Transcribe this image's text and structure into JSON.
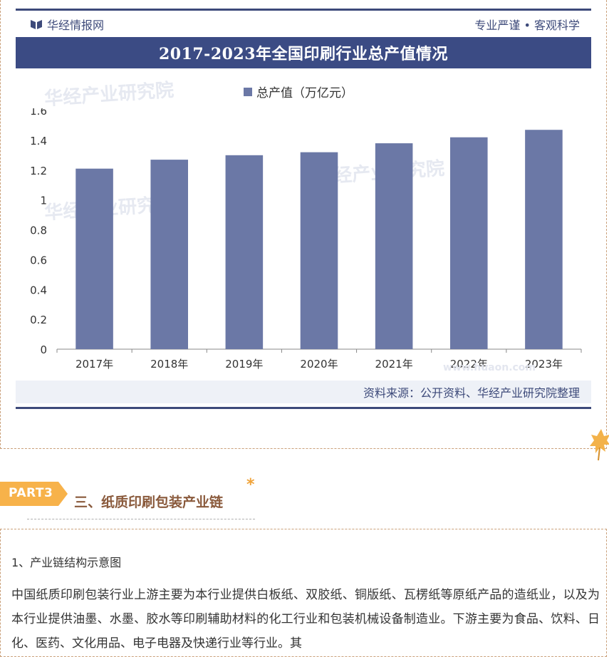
{
  "header": {
    "brand": "华经情报网",
    "tagline": "专业严谨 • 客观科学"
  },
  "chart_data": {
    "type": "bar",
    "title": "2017-2023年全国印刷行业总产值情况",
    "categories": [
      "2017年",
      "2018年",
      "2019年",
      "2020年",
      "2021年",
      "2022年",
      "2023年"
    ],
    "series": [
      {
        "name": "总产值（万亿元）",
        "values": [
          1.21,
          1.27,
          1.3,
          1.32,
          1.38,
          1.42,
          1.47
        ]
      }
    ],
    "yticks": [
      "0",
      "0.2",
      "0.4",
      "0.6",
      "0.8",
      "1",
      "1.2",
      "1.4",
      "1.6"
    ],
    "ylim": [
      0,
      1.6
    ],
    "grid": false,
    "legend": "top-center",
    "bar_color": "#6b78a6"
  },
  "source": "资料来源：公开资料、华经产业研究院整理",
  "watermarks": [
    "华经产业研究院",
    "华经产业研究院",
    "华经产业研究院",
    "www.huaon.com"
  ],
  "section": {
    "part_label": "PART3",
    "title": "三、纸质印刷包装产业链",
    "subheading": "1、产业链结构示意图",
    "paragraph": "中国纸质印刷包装行业上游主要为本行业提供白板纸、双胶纸、铜版纸、瓦楞纸等原纸产品的造纸业，以及为本行业提供油墨、水墨、胶水等印刷辅助材料的化工行业和包装机械设备制造业。下游主要为食品、饮料、日化、医药、文化用品、电子电器及快递行业等行业。其"
  },
  "colors": {
    "navy": "#3b4b84",
    "bar": "#6b78a6",
    "accent_orange": "#f0a33a",
    "section_brown": "#8a5a3c"
  }
}
